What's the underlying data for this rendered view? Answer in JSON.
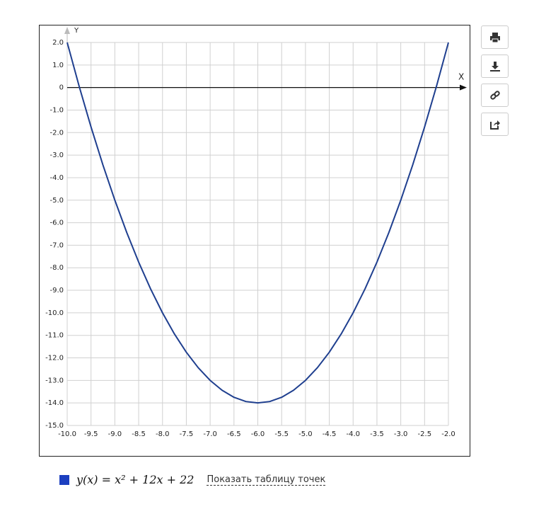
{
  "chart_data": {
    "type": "line",
    "x_label": "X",
    "y_label": "Y",
    "x": [
      -10,
      -9.75,
      -9.5,
      -9.25,
      -9,
      -8.75,
      -8.5,
      -8.25,
      -8,
      -7.75,
      -7.5,
      -7.25,
      -7,
      -6.75,
      -6.5,
      -6.25,
      -6,
      -5.75,
      -5.5,
      -5.25,
      -5,
      -4.75,
      -4.5,
      -4.25,
      -4,
      -3.75,
      -3.5,
      -3.25,
      -3,
      -2.75,
      -2.5,
      -2.25,
      -2
    ],
    "series": [
      {
        "name": "y(x) = x² + 12x + 22",
        "color": "#1f3f8f",
        "values": [
          2,
          0.0625,
          -1.75,
          -3.4375,
          -5,
          -6.4375,
          -7.75,
          -8.9375,
          -10,
          -10.9375,
          -11.75,
          -12.4375,
          -13,
          -13.4375,
          -13.75,
          -13.9375,
          -14,
          -13.9375,
          -13.75,
          -13.4375,
          -13,
          -12.4375,
          -11.75,
          -10.9375,
          -10,
          -8.9375,
          -7.75,
          -6.4375,
          -5,
          -3.4375,
          -1.75,
          0.0625,
          2
        ]
      }
    ],
    "legend_color": "#1c3fc0",
    "xlim": [
      -10,
      -2
    ],
    "ylim": [
      -15,
      2
    ],
    "xticks": [
      {
        "value": -10,
        "label": "-10.0"
      },
      {
        "value": -9.5,
        "label": "-9.5"
      },
      {
        "value": -9,
        "label": "-9.0"
      },
      {
        "value": -8.5,
        "label": "-8.5"
      },
      {
        "value": -8,
        "label": "-8.0"
      },
      {
        "value": -7.5,
        "label": "-7.5"
      },
      {
        "value": -7,
        "label": "-7.0"
      },
      {
        "value": -6.5,
        "label": "-6.5"
      },
      {
        "value": -6,
        "label": "-6.0"
      },
      {
        "value": -5.5,
        "label": "-5.5"
      },
      {
        "value": -5,
        "label": "-5.0"
      },
      {
        "value": -4.5,
        "label": "-4.5"
      },
      {
        "value": -4,
        "label": "-4.0"
      },
      {
        "value": -3.5,
        "label": "-3.5"
      },
      {
        "value": -3,
        "label": "-3.0"
      },
      {
        "value": -2.5,
        "label": "-2.5"
      },
      {
        "value": -2,
        "label": "-2.0"
      }
    ],
    "yticks": [
      {
        "value": 2,
        "label": "2.0"
      },
      {
        "value": 1,
        "label": "1.0"
      },
      0,
      {
        "value": -1,
        "label": "-1.0"
      },
      {
        "value": -2,
        "label": "-2.0"
      },
      {
        "value": -3,
        "label": "-3.0"
      },
      {
        "value": -4,
        "label": "-4.0"
      },
      {
        "value": -5,
        "label": "-5.0"
      },
      {
        "value": -6,
        "label": "-6.0"
      },
      {
        "value": -7,
        "label": "-7.0"
      },
      {
        "value": -8,
        "label": "-8.0"
      },
      {
        "value": -9,
        "label": "-9.0"
      },
      {
        "value": -10,
        "label": "-10.0"
      },
      {
        "value": -11,
        "label": "-11.0"
      },
      {
        "value": -12,
        "label": "-12.0"
      },
      {
        "value": -13,
        "label": "-13.0"
      },
      {
        "value": -14,
        "label": "-14.0"
      },
      {
        "value": -15,
        "label": "-15.0"
      }
    ],
    "grid": true,
    "link_text": "Показать таблицу точек"
  }
}
